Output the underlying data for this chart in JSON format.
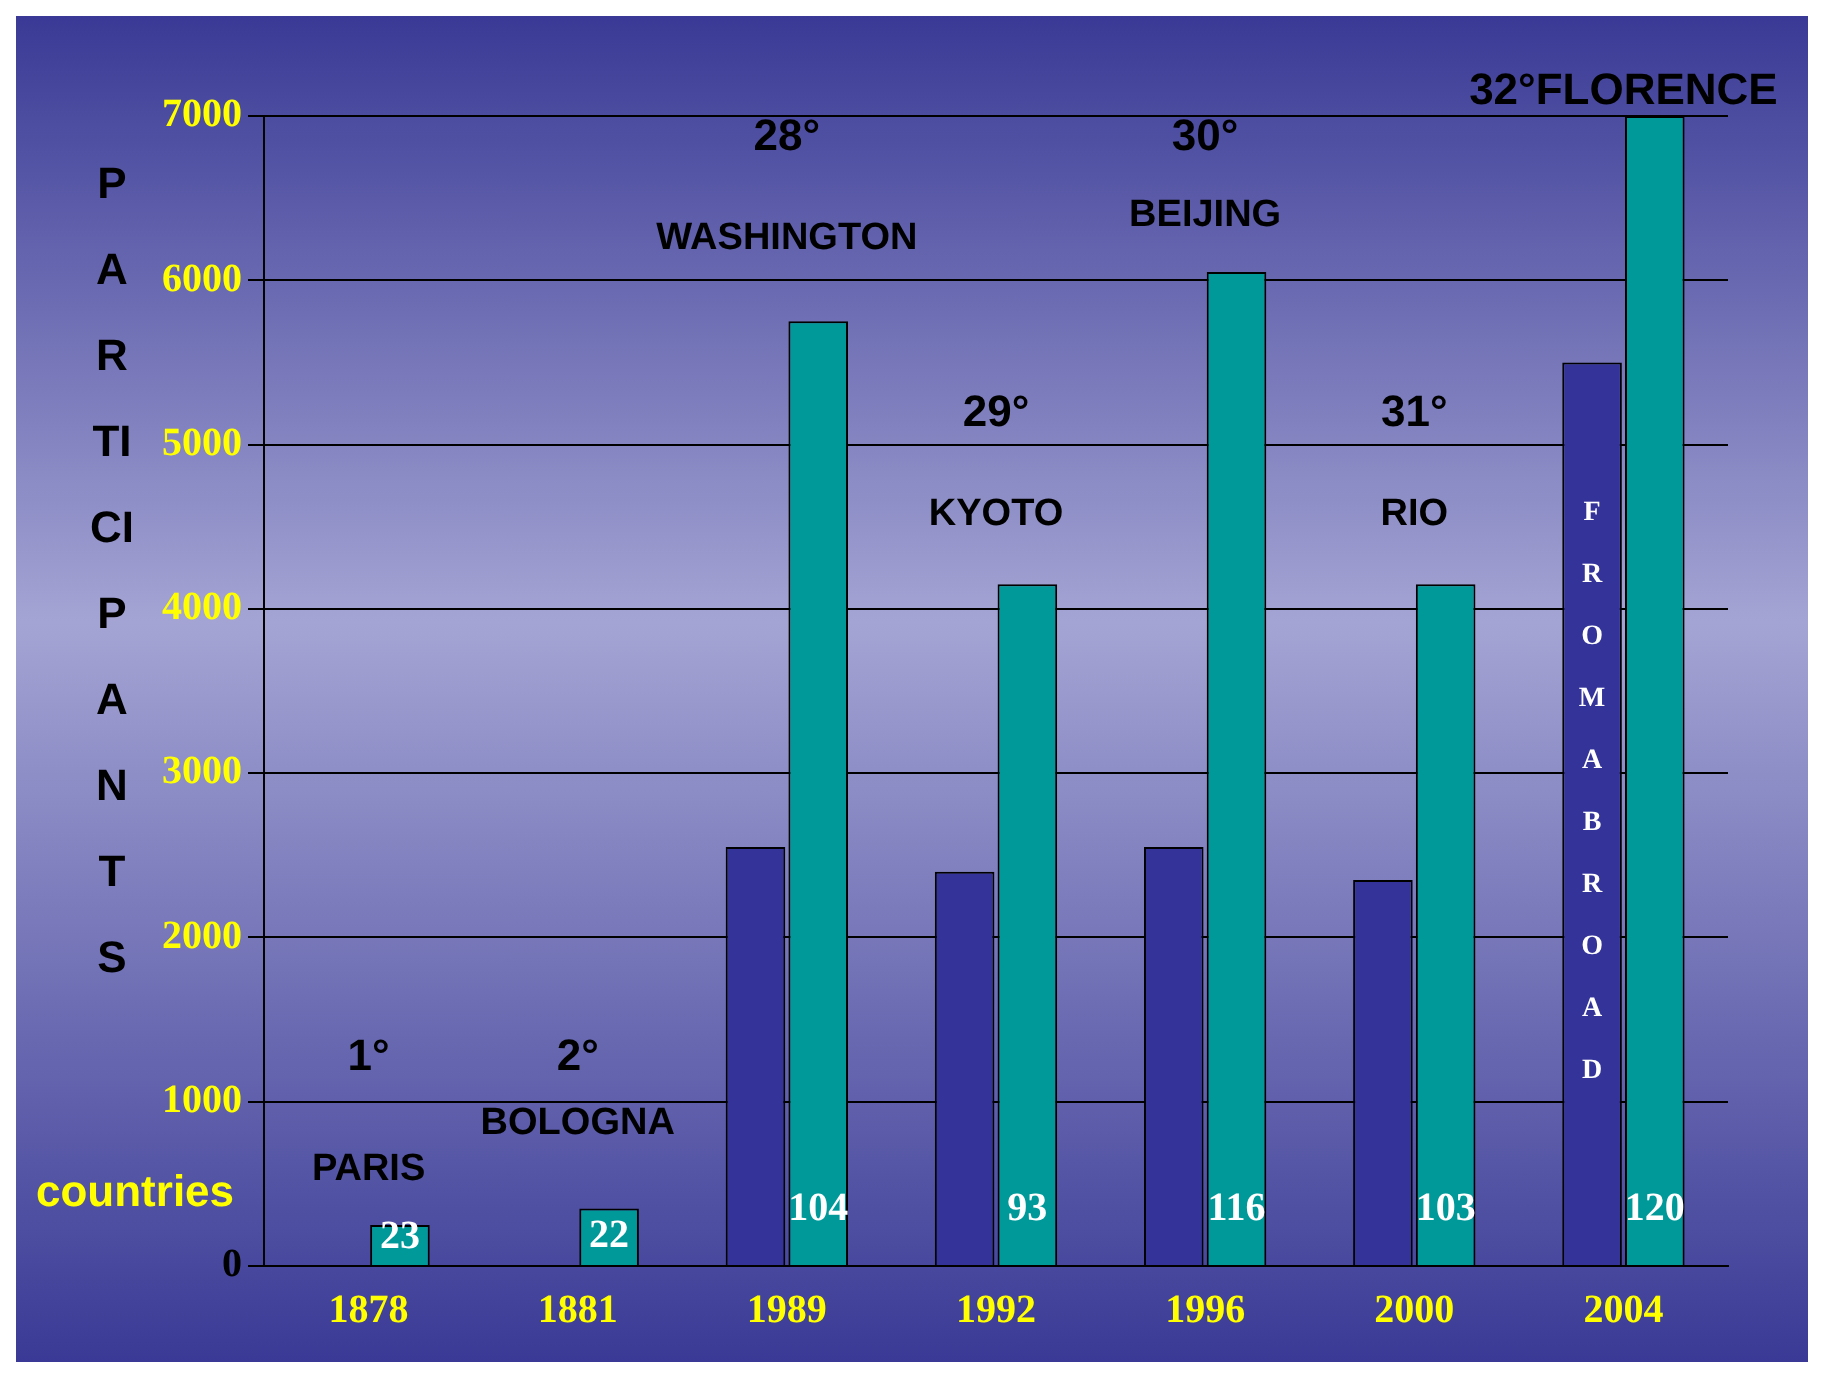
{
  "chart_data": {
    "type": "bar",
    "ylabel": "PARTICIPANTS",
    "categories": [
      "1878",
      "1881",
      "1989",
      "1992",
      "1996",
      "2000",
      "2004"
    ],
    "series": [
      {
        "name": "FROM ABROAD",
        "color": "#333399",
        "values": [
          null,
          null,
          2550,
          2400,
          2550,
          2350,
          5500
        ]
      },
      {
        "color": "#009999",
        "values": [
          250,
          350,
          5750,
          4150,
          6050,
          4150,
          7000
        ]
      }
    ],
    "ylim": [
      0,
      7000
    ],
    "yticks": [
      0,
      1000,
      2000,
      3000,
      4000,
      5000,
      6000,
      7000
    ],
    "grid": "y",
    "legend": false,
    "annotations": [
      "1°",
      "PARIS",
      "2°",
      "BOLOGNA",
      "28°",
      "WASHINGTON",
      "29°",
      "KYOTO",
      "30°",
      "BEIJING",
      "31°",
      "RIO",
      "32°FLORENCE",
      "countries",
      "23",
      "22",
      "104",
      "93",
      "116",
      "103",
      "120"
    ]
  }
}
